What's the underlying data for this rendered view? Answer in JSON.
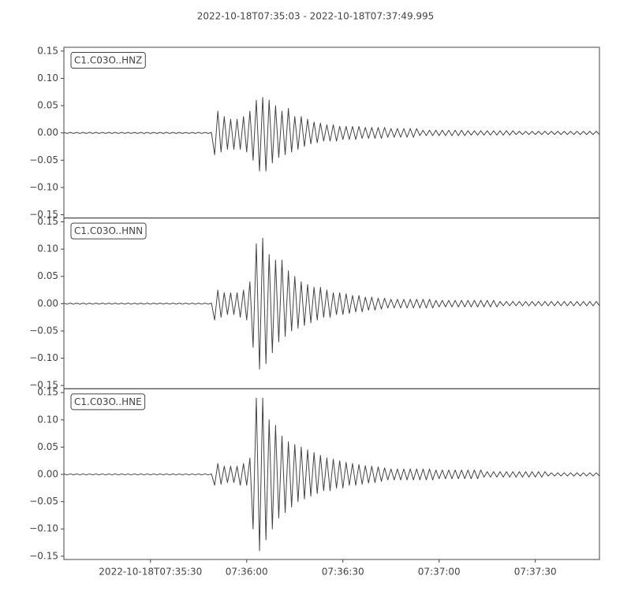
{
  "title": "2022-10-18T07:35:03  -  2022-10-18T07:37:49.995",
  "chart_data": [
    {
      "type": "line",
      "title": "C1.C03O..HNZ",
      "color": "#444444",
      "xlim": [
        0,
        166.995
      ],
      "ylim": [
        -0.156,
        0.157
      ],
      "yticks": [
        {
          "value": 0.15,
          "label": "0.15"
        },
        {
          "value": 0.1,
          "label": "0.10"
        },
        {
          "value": 0.05,
          "label": "0.05"
        },
        {
          "value": 0,
          "label": "0.00"
        },
        {
          "value": -0.05,
          "label": "−0.05"
        },
        {
          "value": -0.1,
          "label": "−0.10"
        },
        {
          "value": -0.15,
          "label": "−0.15"
        }
      ],
      "x": [
        0,
        1,
        2,
        3,
        4,
        5,
        6,
        7,
        8,
        9,
        10,
        11,
        12,
        13,
        14,
        15,
        16,
        17,
        18,
        19,
        20,
        21,
        22,
        23,
        24,
        25,
        26,
        27,
        28,
        29,
        30,
        31,
        32,
        33,
        34,
        35,
        36,
        37,
        38,
        39,
        40,
        41,
        42,
        43,
        44,
        45,
        46,
        47,
        48,
        49,
        50,
        51,
        52,
        53,
        54,
        55,
        56,
        57,
        58,
        59,
        60,
        61,
        62,
        63,
        64,
        65,
        66,
        67,
        68,
        69,
        70,
        71,
        72,
        73,
        74,
        75,
        76,
        77,
        78,
        79,
        80,
        81,
        82,
        83,
        84,
        85,
        86,
        87,
        88,
        89,
        90,
        91,
        92,
        93,
        94,
        95,
        96,
        97,
        98,
        99,
        100,
        101,
        102,
        103,
        104,
        105,
        106,
        107,
        108,
        109,
        110,
        111,
        112,
        113,
        114,
        115,
        116,
        117,
        118,
        119,
        120,
        121,
        122,
        123,
        124,
        125,
        126,
        127,
        128,
        129,
        130,
        131,
        132,
        133,
        134,
        135,
        136,
        137,
        138,
        139,
        140,
        141,
        142,
        143,
        144,
        145,
        146,
        147,
        148,
        149,
        150,
        151,
        152,
        153,
        154,
        155,
        156,
        157,
        158,
        159,
        160,
        161,
        162,
        163,
        164,
        165,
        166,
        167
      ],
      "values": [
        0.001,
        -0.001,
        0.001,
        -0.001,
        0.001,
        -0.001,
        0.001,
        -0.001,
        0.001,
        -0.001,
        0.001,
        -0.001,
        0.001,
        -0.001,
        0.001,
        -0.001,
        0.001,
        -0.001,
        0.001,
        -0.001,
        0.001,
        -0.001,
        0.001,
        -0.001,
        0.001,
        -0.001,
        0.001,
        -0.001,
        0.001,
        -0.001,
        0.001,
        -0.001,
        0.001,
        -0.001,
        0.001,
        -0.001,
        0.001,
        -0.001,
        0.001,
        -0.001,
        0.001,
        -0.001,
        0.001,
        -0.001,
        0.001,
        -0.001,
        0.001,
        -0.04,
        0.04,
        -0.035,
        0.03,
        -0.03,
        0.025,
        -0.03,
        0.025,
        -0.03,
        0.03,
        -0.035,
        0.04,
        -0.05,
        0.06,
        -0.07,
        0.065,
        -0.07,
        0.06,
        -0.055,
        0.05,
        -0.045,
        0.04,
        -0.04,
        0.045,
        -0.035,
        0.03,
        -0.03,
        0.03,
        -0.025,
        0.025,
        -0.02,
        0.02,
        -0.018,
        0.018,
        -0.015,
        0.015,
        -0.015,
        0.015,
        -0.015,
        0.012,
        -0.012,
        0.012,
        -0.012,
        0.012,
        -0.012,
        0.012,
        -0.01,
        0.01,
        -0.01,
        0.01,
        -0.01,
        0.01,
        -0.01,
        0.01,
        -0.008,
        0.008,
        -0.008,
        0.008,
        -0.008,
        0.008,
        -0.008,
        0.008,
        -0.008,
        0.008,
        -0.005,
        0.005,
        -0.005,
        0.005,
        -0.005,
        0.005,
        -0.005,
        0.005,
        -0.005,
        0.005,
        -0.005,
        0.005,
        -0.005,
        0.005,
        -0.005,
        0.004,
        -0.004,
        0.004,
        -0.004,
        0.004,
        -0.004,
        0.004,
        -0.004,
        0.004,
        -0.004,
        0.004,
        -0.004,
        0.004,
        -0.004,
        0.004,
        -0.003,
        0.003,
        -0.003,
        0.003,
        -0.003,
        0.003,
        -0.003,
        0.003,
        -0.003,
        0.003,
        -0.003,
        0.003,
        -0.003,
        0.003,
        -0.003,
        0.003,
        -0.003,
        0.003,
        -0.003,
        0.003,
        -0.003,
        0.003,
        -0.003,
        0.003,
        -0.003,
        0.003,
        -0.003
      ]
    },
    {
      "type": "line",
      "title": "C1.C03O..HNN",
      "color": "#444444",
      "xlim": [
        0,
        166.995
      ],
      "ylim": [
        -0.156,
        0.157
      ],
      "yticks": [
        {
          "value": 0.15,
          "label": "0.15"
        },
        {
          "value": 0.1,
          "label": "0.10"
        },
        {
          "value": 0.05,
          "label": "0.05"
        },
        {
          "value": 0,
          "label": "0.00"
        },
        {
          "value": -0.05,
          "label": "−0.05"
        },
        {
          "value": -0.1,
          "label": "−0.10"
        },
        {
          "value": -0.15,
          "label": "−0.15"
        }
      ],
      "x": [
        0,
        1,
        2,
        3,
        4,
        5,
        6,
        7,
        8,
        9,
        10,
        11,
        12,
        13,
        14,
        15,
        16,
        17,
        18,
        19,
        20,
        21,
        22,
        23,
        24,
        25,
        26,
        27,
        28,
        29,
        30,
        31,
        32,
        33,
        34,
        35,
        36,
        37,
        38,
        39,
        40,
        41,
        42,
        43,
        44,
        45,
        46,
        47,
        48,
        49,
        50,
        51,
        52,
        53,
        54,
        55,
        56,
        57,
        58,
        59,
        60,
        61,
        62,
        63,
        64,
        65,
        66,
        67,
        68,
        69,
        70,
        71,
        72,
        73,
        74,
        75,
        76,
        77,
        78,
        79,
        80,
        81,
        82,
        83,
        84,
        85,
        86,
        87,
        88,
        89,
        90,
        91,
        92,
        93,
        94,
        95,
        96,
        97,
        98,
        99,
        100,
        101,
        102,
        103,
        104,
        105,
        106,
        107,
        108,
        109,
        110,
        111,
        112,
        113,
        114,
        115,
        116,
        117,
        118,
        119,
        120,
        121,
        122,
        123,
        124,
        125,
        126,
        127,
        128,
        129,
        130,
        131,
        132,
        133,
        134,
        135,
        136,
        137,
        138,
        139,
        140,
        141,
        142,
        143,
        144,
        145,
        146,
        147,
        148,
        149,
        150,
        151,
        152,
        153,
        154,
        155,
        156,
        157,
        158,
        159,
        160,
        161,
        162,
        163,
        164,
        165,
        166,
        167
      ],
      "values": [
        0.001,
        -0.001,
        0.001,
        -0.001,
        0.001,
        -0.001,
        0.001,
        -0.001,
        0.001,
        -0.001,
        0.001,
        -0.001,
        0.001,
        -0.001,
        0.001,
        -0.001,
        0.001,
        -0.001,
        0.001,
        -0.001,
        0.001,
        -0.001,
        0.001,
        -0.001,
        0.001,
        -0.001,
        0.001,
        -0.001,
        0.001,
        -0.001,
        0.001,
        -0.001,
        0.001,
        -0.001,
        0.001,
        -0.001,
        0.001,
        -0.001,
        0.001,
        -0.001,
        0.001,
        -0.001,
        0.001,
        -0.001,
        0.001,
        -0.001,
        0.001,
        -0.03,
        0.025,
        -0.025,
        0.02,
        -0.02,
        0.02,
        -0.02,
        0.02,
        -0.025,
        0.025,
        -0.03,
        0.04,
        -0.08,
        0.11,
        -0.12,
        0.12,
        -0.11,
        0.09,
        -0.09,
        0.08,
        -0.07,
        0.08,
        -0.06,
        0.06,
        -0.05,
        0.05,
        -0.045,
        0.04,
        -0.04,
        0.035,
        -0.035,
        0.03,
        -0.03,
        0.03,
        -0.025,
        0.025,
        -0.025,
        0.02,
        -0.02,
        0.02,
        -0.02,
        0.018,
        -0.018,
        0.015,
        -0.015,
        0.015,
        -0.015,
        0.012,
        -0.012,
        0.012,
        -0.012,
        0.01,
        -0.01,
        0.01,
        -0.008,
        0.008,
        -0.008,
        0.008,
        -0.008,
        0.008,
        -0.008,
        0.008,
        -0.008,
        0.008,
        -0.008,
        0.008,
        -0.008,
        0.008,
        -0.008,
        0.006,
        -0.006,
        0.006,
        -0.006,
        0.006,
        -0.006,
        0.006,
        -0.006,
        0.006,
        -0.006,
        0.006,
        -0.006,
        0.006,
        -0.006,
        0.006,
        -0.006,
        0.006,
        -0.006,
        0.006,
        -0.006,
        0.004,
        -0.004,
        0.004,
        -0.004,
        0.004,
        -0.004,
        0.004,
        -0.004,
        0.004,
        -0.004,
        0.004,
        -0.004,
        0.004,
        -0.004,
        0.004,
        -0.004,
        0.004,
        -0.004,
        0.004,
        -0.004,
        0.004,
        -0.004,
        0.004,
        -0.004,
        0.004,
        -0.004,
        0.004,
        -0.004,
        0.004,
        -0.004,
        0.004,
        -0.004
      ]
    },
    {
      "type": "line",
      "title": "C1.C03O..HNE",
      "color": "#444444",
      "xlim": [
        0,
        166.995
      ],
      "ylim": [
        -0.156,
        0.157
      ],
      "yticks": [
        {
          "value": 0.15,
          "label": "0.15"
        },
        {
          "value": 0.1,
          "label": "0.10"
        },
        {
          "value": 0.05,
          "label": "0.05"
        },
        {
          "value": 0,
          "label": "0.00"
        },
        {
          "value": -0.05,
          "label": "−0.05"
        },
        {
          "value": -0.1,
          "label": "−0.10"
        },
        {
          "value": -0.15,
          "label": "−0.15"
        }
      ],
      "xticks": [
        {
          "value": 27,
          "label": "2022-10-18T07:35:30"
        },
        {
          "value": 57,
          "label": "07:36:00"
        },
        {
          "value": 87,
          "label": "07:36:30"
        },
        {
          "value": 117,
          "label": "07:37:00"
        },
        {
          "value": 147,
          "label": "07:37:30"
        }
      ],
      "x": [
        0,
        1,
        2,
        3,
        4,
        5,
        6,
        7,
        8,
        9,
        10,
        11,
        12,
        13,
        14,
        15,
        16,
        17,
        18,
        19,
        20,
        21,
        22,
        23,
        24,
        25,
        26,
        27,
        28,
        29,
        30,
        31,
        32,
        33,
        34,
        35,
        36,
        37,
        38,
        39,
        40,
        41,
        42,
        43,
        44,
        45,
        46,
        47,
        48,
        49,
        50,
        51,
        52,
        53,
        54,
        55,
        56,
        57,
        58,
        59,
        60,
        61,
        62,
        63,
        64,
        65,
        66,
        67,
        68,
        69,
        70,
        71,
        72,
        73,
        74,
        75,
        76,
        77,
        78,
        79,
        80,
        81,
        82,
        83,
        84,
        85,
        86,
        87,
        88,
        89,
        90,
        91,
        92,
        93,
        94,
        95,
        96,
        97,
        98,
        99,
        100,
        101,
        102,
        103,
        104,
        105,
        106,
        107,
        108,
        109,
        110,
        111,
        112,
        113,
        114,
        115,
        116,
        117,
        118,
        119,
        120,
        121,
        122,
        123,
        124,
        125,
        126,
        127,
        128,
        129,
        130,
        131,
        132,
        133,
        134,
        135,
        136,
        137,
        138,
        139,
        140,
        141,
        142,
        143,
        144,
        145,
        146,
        147,
        148,
        149,
        150,
        151,
        152,
        153,
        154,
        155,
        156,
        157,
        158,
        159,
        160,
        161,
        162,
        163,
        164,
        165,
        166,
        167
      ],
      "values": [
        0.001,
        -0.001,
        0.001,
        -0.001,
        0.001,
        -0.001,
        0.001,
        -0.001,
        0.001,
        -0.001,
        0.001,
        -0.001,
        0.001,
        -0.001,
        0.001,
        -0.001,
        0.001,
        -0.001,
        0.001,
        -0.001,
        0.001,
        -0.001,
        0.001,
        -0.001,
        0.001,
        -0.001,
        0.001,
        -0.001,
        0.001,
        -0.001,
        0.001,
        -0.001,
        0.001,
        -0.001,
        0.001,
        -0.001,
        0.001,
        -0.001,
        0.001,
        -0.001,
        0.001,
        -0.001,
        0.001,
        -0.001,
        0.001,
        -0.001,
        0.001,
        -0.02,
        0.02,
        -0.018,
        0.015,
        -0.015,
        0.015,
        -0.015,
        0.015,
        -0.02,
        0.02,
        -0.02,
        0.03,
        -0.1,
        0.14,
        -0.14,
        0.14,
        -0.12,
        0.1,
        -0.1,
        0.09,
        -0.08,
        0.07,
        -0.07,
        0.06,
        -0.06,
        0.055,
        -0.05,
        0.05,
        -0.045,
        0.045,
        -0.04,
        0.04,
        -0.035,
        0.035,
        -0.03,
        0.03,
        -0.03,
        0.028,
        -0.025,
        0.025,
        -0.025,
        0.022,
        -0.02,
        0.02,
        -0.02,
        0.018,
        -0.018,
        0.016,
        -0.016,
        0.015,
        -0.015,
        0.014,
        -0.013,
        0.012,
        -0.01,
        0.01,
        -0.01,
        0.01,
        -0.01,
        0.01,
        -0.01,
        0.01,
        -0.01,
        0.01,
        -0.01,
        0.01,
        -0.01,
        0.01,
        -0.01,
        0.008,
        -0.008,
        0.008,
        -0.008,
        0.008,
        -0.008,
        0.008,
        -0.008,
        0.008,
        -0.008,
        0.008,
        -0.008,
        0.008,
        -0.008,
        0.008,
        -0.005,
        0.005,
        -0.005,
        0.005,
        -0.005,
        0.005,
        -0.005,
        0.005,
        -0.005,
        0.005,
        -0.005,
        0.005,
        -0.005,
        0.005,
        -0.005,
        0.005,
        -0.005,
        0.005,
        -0.005,
        0.005,
        -0.003,
        0.003,
        -0.003,
        0.003,
        -0.003,
        0.003,
        -0.003,
        0.003,
        -0.003,
        0.003,
        -0.003,
        0.003,
        -0.003,
        0.003,
        -0.003,
        0.003,
        -0.003
      ]
    }
  ]
}
